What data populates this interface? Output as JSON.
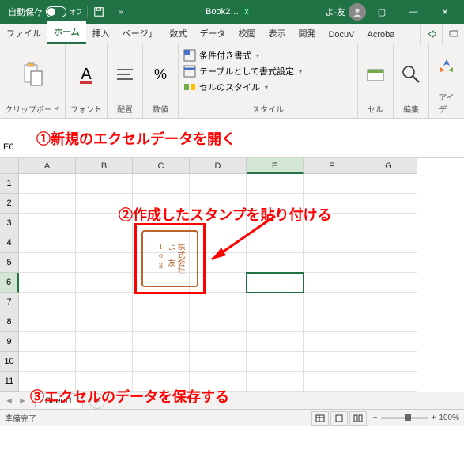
{
  "titlebar": {
    "autosave_label": "自動保存",
    "autosave_state": "オフ",
    "book_title": "Book2…",
    "user_name": "よ-友",
    "window_buttons": {
      "box": "▢",
      "minimize": "—",
      "close": "✕"
    }
  },
  "tabs": [
    "ファイル",
    "ホーム",
    "挿入",
    "ページ」",
    "数式",
    "データ",
    "校閲",
    "表示",
    "開発",
    "DocuV",
    "Acroba"
  ],
  "active_tab_index": 1,
  "ribbon": {
    "clipboard": "クリップボード",
    "font": "フォント",
    "align": "配置",
    "number": "数値",
    "cond_format": "条件付き書式",
    "table_format": "テーブルとして書式設定",
    "cell_style": "セルのスタイル",
    "style": "スタイル",
    "cell": "セル",
    "edit": "編集",
    "idea": "アイ\nデ"
  },
  "namebox": "E6",
  "annotations": {
    "a1": "①新規のエクセルデータを開く",
    "a2": "②作成したスタンプを貼り付ける",
    "a3": "③エクセルのデータを保存する"
  },
  "columns": [
    "A",
    "B",
    "C",
    "D",
    "E",
    "F",
    "G"
  ],
  "rows": [
    "1",
    "2",
    "3",
    "4",
    "5",
    "6",
    "7",
    "8",
    "9",
    "10",
    "11"
  ],
  "selected_col": 4,
  "selected_row": 5,
  "stamp_text": "株式会社\nよー友\nlog",
  "sheet": {
    "name": "Sheet1"
  },
  "status": {
    "ready": "準備完了",
    "zoom": "100%"
  },
  "colors": {
    "annotation": "#ff0000",
    "excel_green": "#217346",
    "stamp": "#b8632a"
  }
}
